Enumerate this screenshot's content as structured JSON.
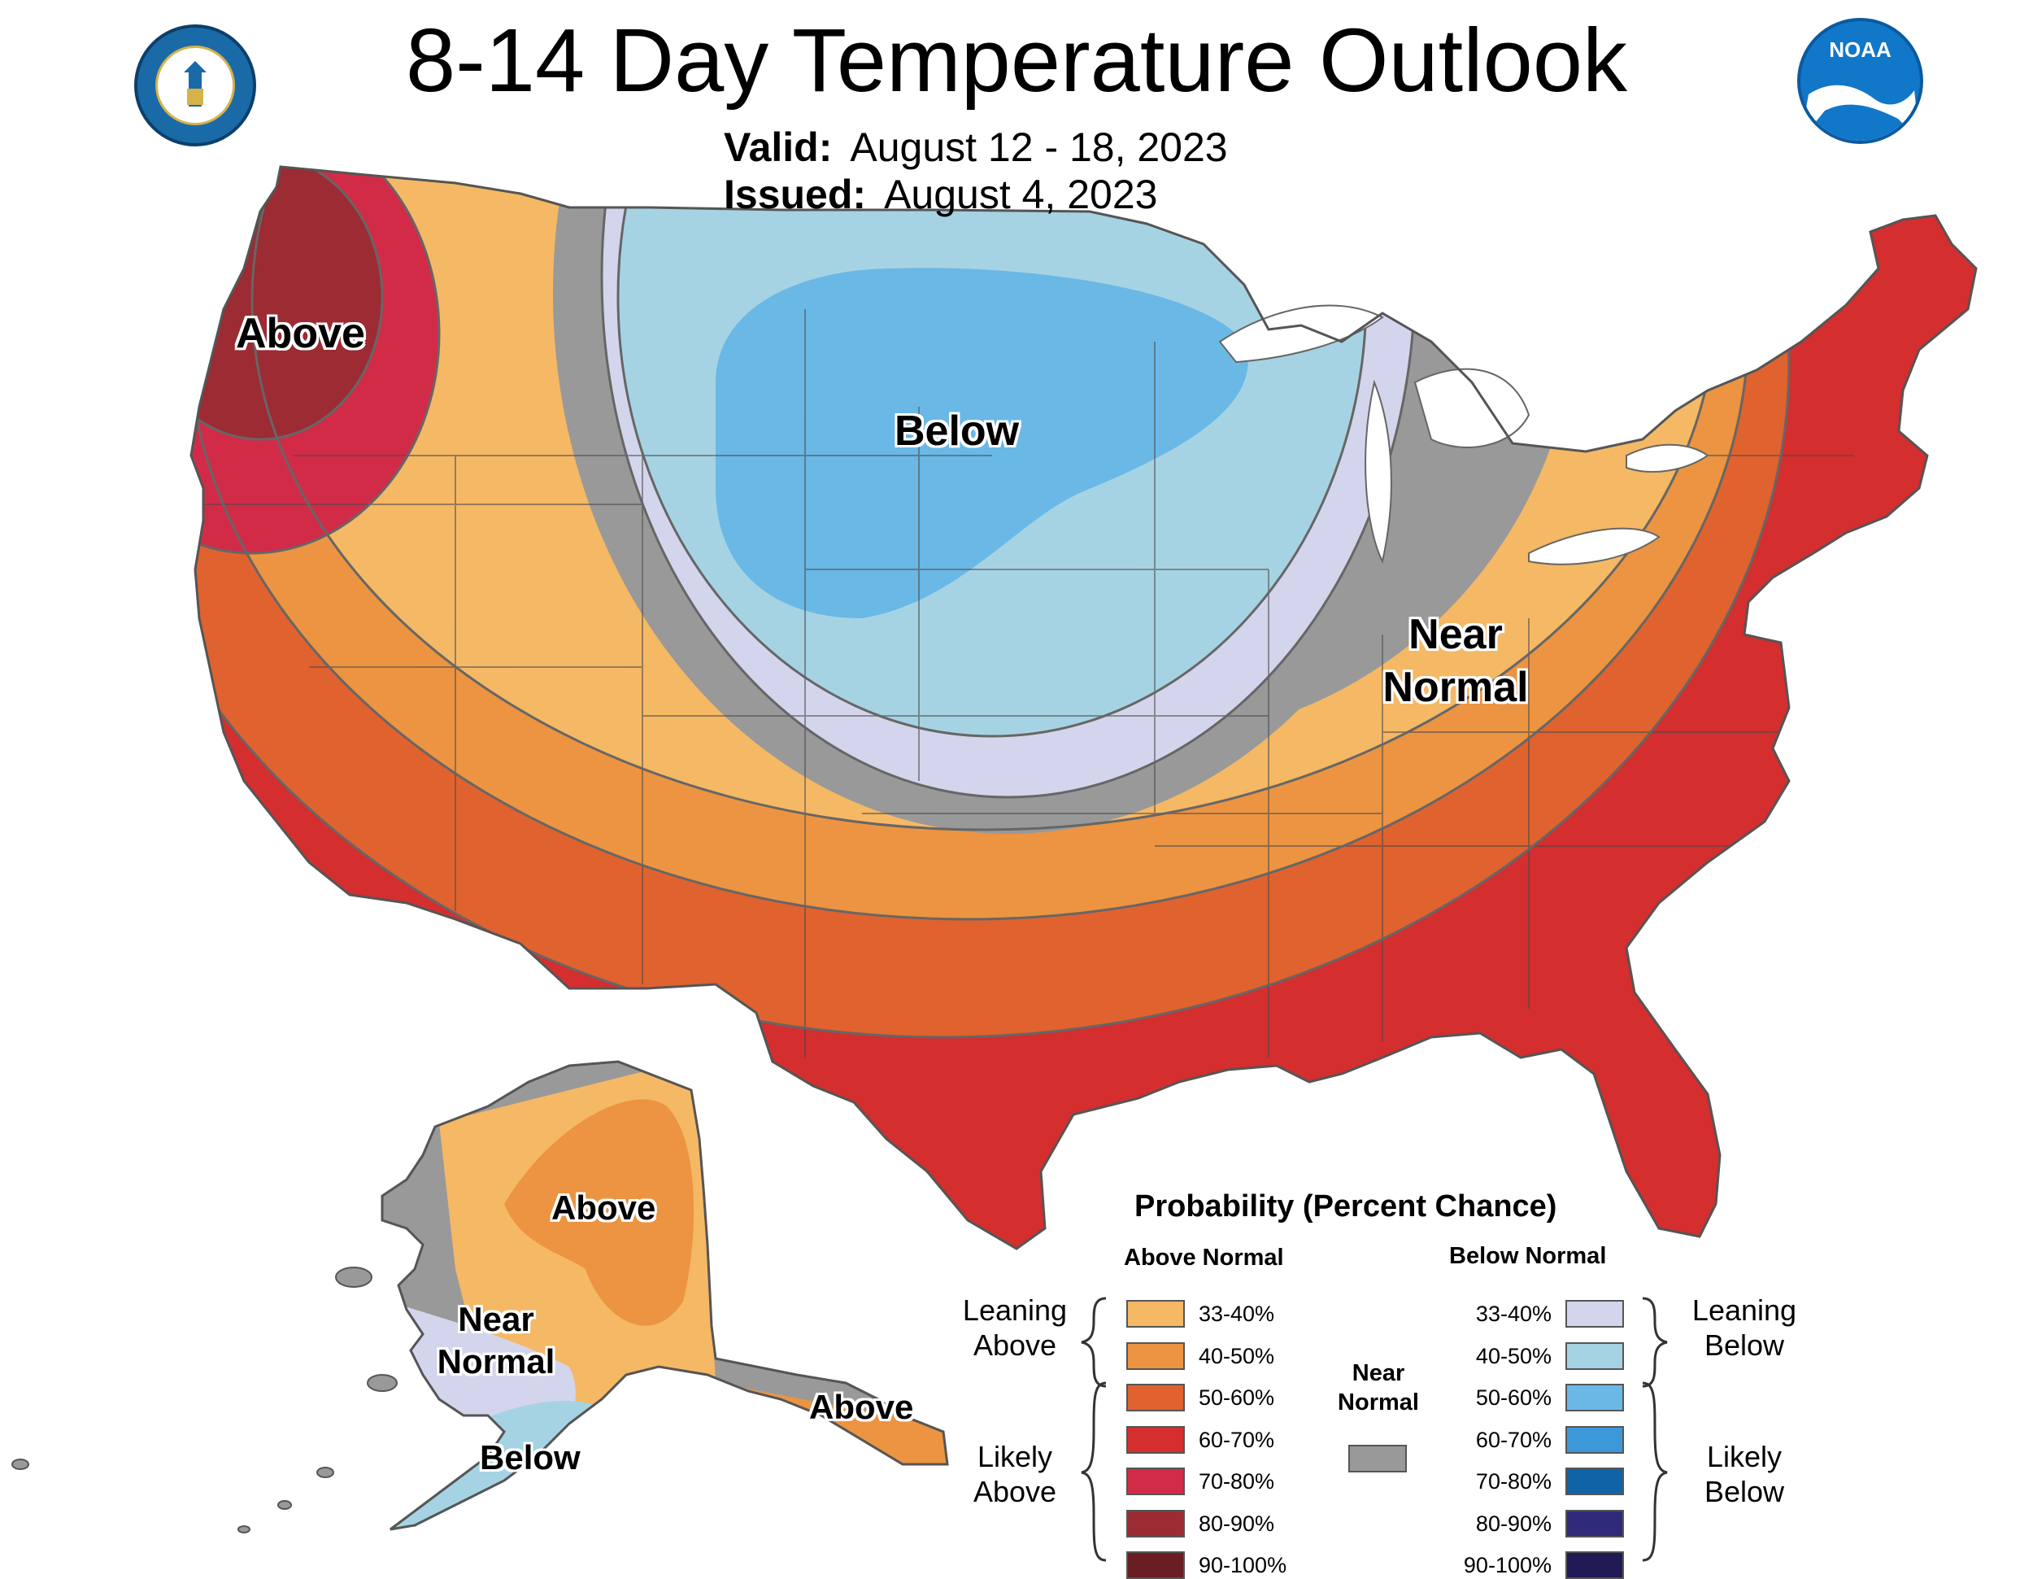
{
  "header": {
    "title": "8-14 Day Temperature Outlook",
    "valid_label": "Valid:",
    "valid_value": "August 12 - 18, 2023",
    "issued_label": "Issued:",
    "issued_value": "August 4, 2023"
  },
  "logos": {
    "left_icon": "department-of-commerce-seal",
    "right_icon": "noaa-logo",
    "noaa_text": "NOAA"
  },
  "map_labels": {
    "pacific_nw": "Above",
    "north_plains": "Below",
    "ohio_valley_1": "Near",
    "ohio_valley_2": "Normal",
    "alaska_interior": "Above",
    "alaska_west_1": "Near",
    "alaska_west_2": "Normal",
    "alaska_south": "Below",
    "alaska_panhandle": "Above"
  },
  "legend": {
    "title": "Probability (Percent Chance)",
    "above_header": "Above Normal",
    "below_header": "Below Normal",
    "near_normal_1": "Near",
    "near_normal_2": "Normal",
    "leaning_above_1": "Leaning",
    "leaning_above_2": "Above",
    "likely_above_1": "Likely",
    "likely_above_2": "Above",
    "leaning_below_1": "Leaning",
    "leaning_below_2": "Below",
    "likely_below_1": "Likely",
    "likely_below_2": "Below",
    "above": [
      {
        "range": "33-40%",
        "color": "#f5b865"
      },
      {
        "range": "40-50%",
        "color": "#ec9441"
      },
      {
        "range": "50-60%",
        "color": "#e0622e"
      },
      {
        "range": "60-70%",
        "color": "#d42e2e"
      },
      {
        "range": "70-80%",
        "color": "#d22b48"
      },
      {
        "range": "80-90%",
        "color": "#9c2b33"
      },
      {
        "range": "90-100%",
        "color": "#6a1e24"
      }
    ],
    "below": [
      {
        "range": "33-40%",
        "color": "#d3d5ec"
      },
      {
        "range": "40-50%",
        "color": "#a6d3e3"
      },
      {
        "range": "50-60%",
        "color": "#6ab8e6"
      },
      {
        "range": "60-70%",
        "color": "#3c98d8"
      },
      {
        "range": "70-80%",
        "color": "#0f64a8"
      },
      {
        "range": "80-90%",
        "color": "#2f2a7a"
      },
      {
        "range": "90-100%",
        "color": "#201a55"
      }
    ],
    "near_color": "#999999"
  }
}
